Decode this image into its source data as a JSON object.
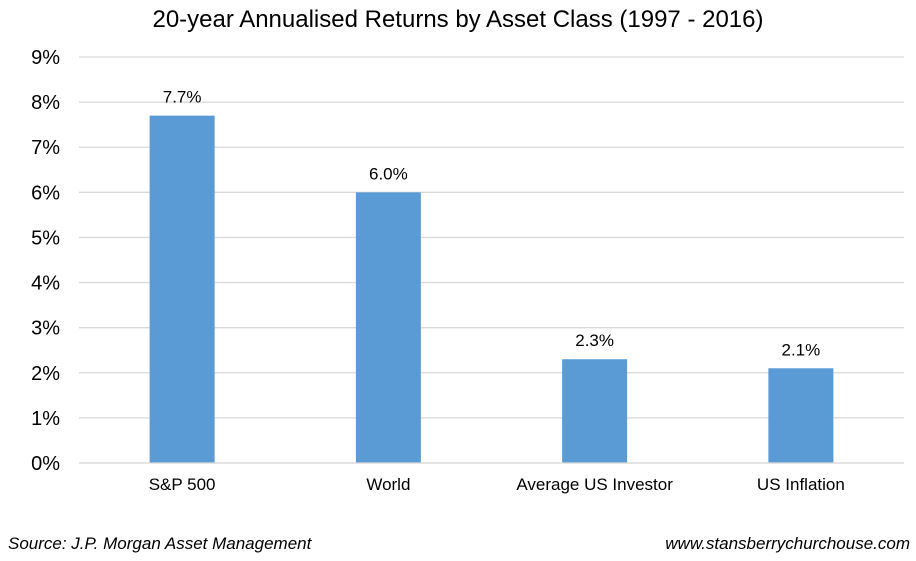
{
  "chart_data": {
    "type": "bar",
    "title": "20-year Annualised Returns by Asset Class (1997 - 2016)",
    "categories": [
      "S&P 500",
      "World",
      "Average US Investor",
      "US Inflation"
    ],
    "values": [
      7.7,
      6.0,
      2.3,
      2.1
    ],
    "data_labels": [
      "7.7%",
      "6.0%",
      "2.3%",
      "2.1%"
    ],
    "y_ticks": [
      "0%",
      "1%",
      "2%",
      "3%",
      "4%",
      "5%",
      "6%",
      "7%",
      "8%",
      "9%"
    ],
    "ylim": [
      0,
      9
    ],
    "grid": true,
    "legend": "none",
    "bar_color": "#5b9bd5",
    "grid_color": "#d9d9d9"
  },
  "footer": {
    "source": "Source: J.P. Morgan Asset Management",
    "website": "www.stansberrychurchouse.com"
  }
}
